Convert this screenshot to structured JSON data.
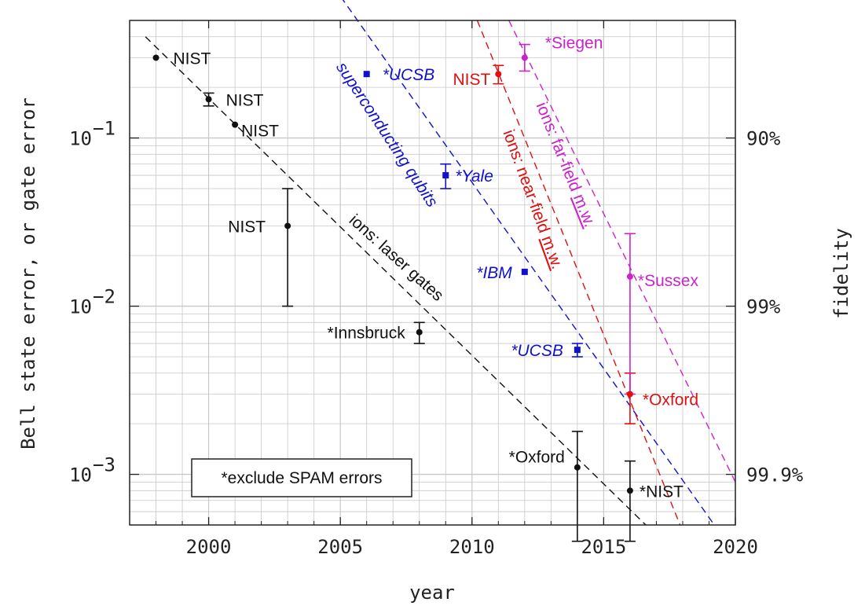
{
  "chart_data": {
    "type": "scatter",
    "title": "",
    "xlabel": "year",
    "ylabel": "Bell state error, or gate error",
    "y2label": "fidelity",
    "xlim": [
      1997,
      2020
    ],
    "ylim": [
      0.0005,
      0.5
    ],
    "yscale": "log",
    "grid": true,
    "x_ticks": [
      {
        "value": 2000,
        "label": "2000"
      },
      {
        "value": 2005,
        "label": "2005"
      },
      {
        "value": 2010,
        "label": "2010"
      },
      {
        "value": 2015,
        "label": "2015"
      },
      {
        "value": 2020,
        "label": "2020"
      }
    ],
    "y_ticks": [
      {
        "value": 0.1,
        "mant": "10",
        "exp": "−1"
      },
      {
        "value": 0.01,
        "mant": "10",
        "exp": "−2"
      },
      {
        "value": 0.001,
        "mant": "10",
        "exp": "−3"
      }
    ],
    "y2_ticks": [
      {
        "value": 0.1,
        "label": "90%"
      },
      {
        "value": 0.01,
        "label": "99%"
      },
      {
        "value": 0.001,
        "label": "99.9%"
      }
    ],
    "colors": {
      "black": "#111111",
      "blue": "#1111cc",
      "red": "#dd1111",
      "magenta": "#cc22cc",
      "grid": "#c8c8c8"
    },
    "series": [
      {
        "name": "ions: laser gates",
        "color": "black",
        "marker": "circle",
        "points": [
          {
            "x": 1998,
            "y": 0.3,
            "label": "NIST"
          },
          {
            "x": 2000,
            "y": 0.17,
            "err": [
              0.155,
              0.185
            ],
            "label": "NIST"
          },
          {
            "x": 2001,
            "y": 0.12,
            "label": "NIST"
          },
          {
            "x": 2003,
            "y": 0.03,
            "err": [
              0.01,
              0.05
            ],
            "label": "NIST"
          },
          {
            "x": 2008,
            "y": 0.007,
            "err": [
              0.006,
              0.008
            ],
            "label": "*Innsbruck"
          },
          {
            "x": 2014,
            "y": 0.0011,
            "err": [
              0.0004,
              0.0018
            ],
            "label": "*Oxford"
          },
          {
            "x": 2016,
            "y": 0.0008,
            "err": [
              0.0004,
              0.0012
            ],
            "label": "*NIST"
          }
        ]
      },
      {
        "name": "superconducting qubits",
        "color": "blue",
        "marker": "square",
        "points": [
          {
            "x": 2006,
            "y": 0.24,
            "label": "*UCSB"
          },
          {
            "x": 2009,
            "y": 0.06,
            "err": [
              0.05,
              0.07
            ],
            "label": "*Yale"
          },
          {
            "x": 2012,
            "y": 0.016,
            "label": "*IBM"
          },
          {
            "x": 2014,
            "y": 0.0055,
            "err": [
              0.005,
              0.006
            ],
            "label": "*UCSB"
          }
        ]
      },
      {
        "name": "ions: near-field m.w.",
        "color": "red",
        "marker": "circle",
        "points": [
          {
            "x": 2011,
            "y": 0.24,
            "err": [
              0.21,
              0.27
            ],
            "label": "NIST"
          },
          {
            "x": 2016,
            "y": 0.003,
            "err": [
              0.002,
              0.004
            ],
            "label": "*Oxford"
          }
        ]
      },
      {
        "name": "ions: far-field m.w.",
        "color": "magenta",
        "marker": "circle",
        "points": [
          {
            "x": 2012,
            "y": 0.3,
            "err": [
              0.25,
              0.36
            ],
            "label": "*Siegen"
          },
          {
            "x": 2016,
            "y": 0.015,
            "err": [
              0.003,
              0.027
            ],
            "label": "*Sussex"
          }
        ]
      }
    ],
    "trend_lines": [
      {
        "name": "ions: laser gates",
        "color": "black",
        "from": [
          1997.6,
          0.4
        ],
        "to": [
          2016.6,
          0.0005
        ]
      },
      {
        "name": "superconducting qubits",
        "color": "blue",
        "from": [
          2004.5,
          0.9
        ],
        "to": [
          2019.2,
          0.0005
        ]
      },
      {
        "name": "ions: near-field m.w.",
        "color": "red",
        "from": [
          2010.2,
          0.5
        ],
        "to": [
          2017.9,
          0.0005
        ]
      },
      {
        "name": "ions: far-field m.w.",
        "color": "magenta",
        "from": [
          2011.4,
          0.5
        ],
        "to": [
          2020.0,
          0.0009
        ]
      }
    ],
    "line_labels": [
      {
        "text": "superconducting qubits",
        "color": "blue",
        "italic": true
      },
      {
        "text": "ions: laser gates",
        "color": "black",
        "italic": false
      },
      {
        "text": "ions: near-field m.w.",
        "color": "red",
        "italic": false,
        "underline": "m.w."
      },
      {
        "text": "ions: far-field m.w.",
        "color": "magenta",
        "italic": false,
        "underline": "m.w."
      }
    ],
    "note": "*exclude SPAM errors"
  }
}
